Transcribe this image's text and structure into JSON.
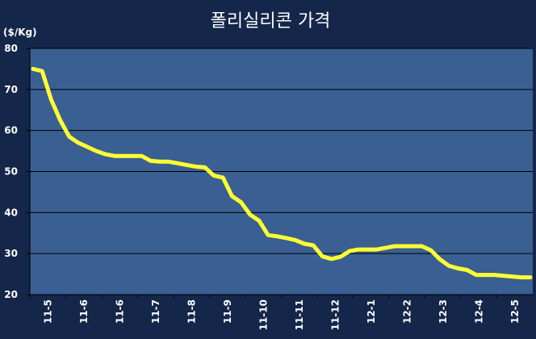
{
  "chart_data": {
    "type": "line",
    "title": "폴리실리콘 가격",
    "ylabel": "($/Kg)",
    "xlabel": "",
    "ylim": [
      20,
      80
    ],
    "yticks": [
      20,
      30,
      40,
      50,
      60,
      70,
      80
    ],
    "grid": true,
    "legend": "none",
    "x_tick_labels": [
      "11-5",
      "11-6",
      "11-6",
      "11-7",
      "11-8",
      "11-9",
      "11-10",
      "11-11",
      "11-12",
      "12-1",
      "12-2",
      "12-3",
      "12-4",
      "12-5"
    ],
    "series": [
      {
        "values": [
          75,
          74.5,
          67.5,
          62.5,
          58.5,
          57,
          56,
          55,
          54.2,
          53.8,
          53.8,
          53.8,
          53.8,
          52.6,
          52.4,
          52.4,
          52,
          51.6,
          51.2,
          51,
          49,
          48.5,
          44,
          42.5,
          39.5,
          38,
          34.5,
          34.2,
          33.8,
          33.3,
          32.4,
          32,
          29.3,
          28.7,
          29.2,
          30.6,
          31,
          31,
          31,
          31.4,
          31.8,
          31.8,
          31.8,
          31.8,
          30.8,
          28.6,
          27,
          26.4,
          26,
          24.8,
          24.8,
          24.8,
          24.6,
          24.4,
          24.2,
          24.2
        ]
      }
    ],
    "colors": {
      "background": "#14264a",
      "plot_area": "#3a5f93",
      "grid": "#000000",
      "line": "#ffff33",
      "text": "#ffffff"
    }
  }
}
